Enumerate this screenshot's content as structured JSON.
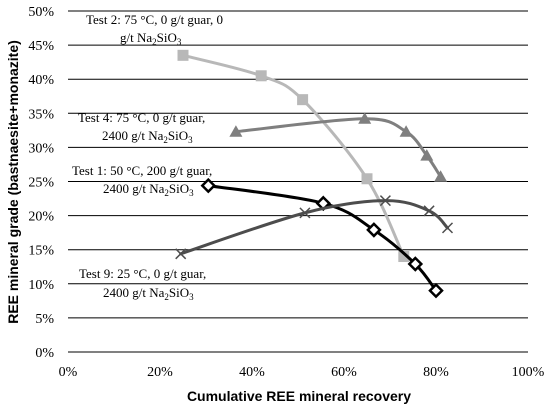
{
  "chart_data": {
    "type": "line",
    "ylabel": "REE mineral grade (bastnaesite+monazite)",
    "xlabel": "Cumulative REE mineral recovery",
    "xlim": [
      0,
      100
    ],
    "ylim": [
      0,
      50
    ],
    "xticks": [
      0,
      20,
      40,
      60,
      80,
      100
    ],
    "yticks": [
      0,
      5,
      10,
      15,
      20,
      25,
      30,
      35,
      40,
      45,
      50
    ],
    "xtick_labels": [
      "0%",
      "20%",
      "40%",
      "60%",
      "80%",
      "100%"
    ],
    "ytick_labels": [
      "0%",
      "5%",
      "10%",
      "15%",
      "20%",
      "25%",
      "30%",
      "35%",
      "40%",
      "45%",
      "50%"
    ],
    "grid": "horizontal",
    "series": [
      {
        "annotation": [
          "Test 2: 75 °C, 0 g/t guar, 0",
          "g/t Na2SiO3"
        ],
        "color": "#b8b8b8",
        "marker": "square",
        "x": [
          25,
          42,
          51,
          65,
          73
        ],
        "y": [
          43.5,
          40.5,
          37,
          25.4,
          14
        ]
      },
      {
        "annotation": [
          "Test 4: 75 °C, 0 g/t guar,",
          "2400 g/t Na2SiO3"
        ],
        "color": "#7f7f7f",
        "marker": "triangle",
        "x": [
          36.5,
          64.5,
          73.5,
          78,
          81
        ],
        "y": [
          32.3,
          34.2,
          32.3,
          28.8,
          25.7
        ]
      },
      {
        "annotation": [
          "Test 1: 50 °C, 200 g/t guar,",
          "2400 g/t Na2SiO3"
        ],
        "color": "#000000",
        "marker": "diamond",
        "x": [
          30.5,
          55.5,
          66.5,
          75.5,
          80
        ],
        "y": [
          24.4,
          21.8,
          17.9,
          12.9,
          9
        ]
      },
      {
        "annotation": [
          "Test 9: 25 °C, 0 g/t guar,",
          "2400 g/t Na2SiO3"
        ],
        "color": "#4d4d4d",
        "marker": "x",
        "x": [
          24.5,
          51.5,
          69,
          78.5,
          82.5
        ],
        "y": [
          14.4,
          20.4,
          22.2,
          20.7,
          18.2
        ]
      }
    ]
  }
}
